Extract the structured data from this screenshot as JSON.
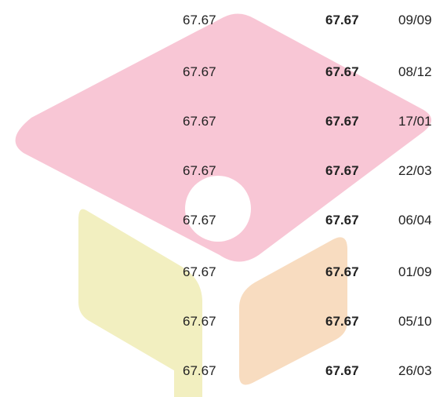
{
  "table": {
    "rows": [
      [
        "67.67",
        "67.67",
        "09/09"
      ],
      [
        "67.67",
        "67.67",
        "08/12"
      ],
      [
        "67.67",
        "67.67",
        "17/01"
      ],
      [
        "67.67",
        "67.67",
        "22/03"
      ],
      [
        "67.67",
        "67.67",
        "06/04"
      ],
      [
        "67.67",
        "67.67",
        "01/09"
      ],
      [
        "67.67",
        "67.67",
        "05/10"
      ],
      [
        "67.67",
        "67.67",
        "26/03"
      ]
    ]
  }
}
